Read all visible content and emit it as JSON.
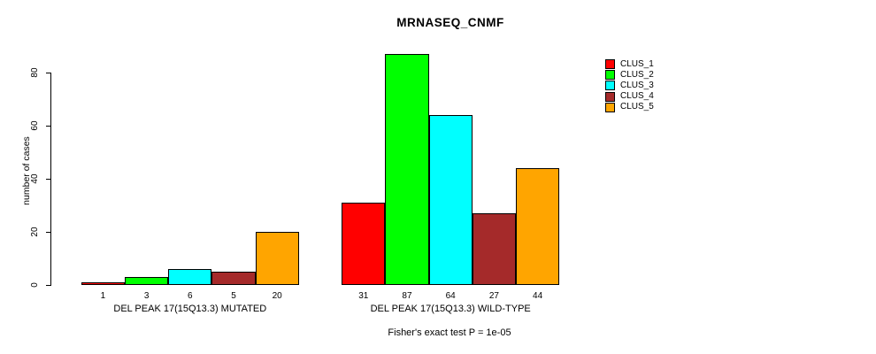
{
  "chart_data": {
    "type": "bar",
    "title": "MRNASEQ_CNMF",
    "ylabel": "number of cases",
    "ylim": [
      0,
      87
    ],
    "yticks": [
      0,
      20,
      40,
      60,
      80
    ],
    "grid": false,
    "legend_position": "right-outside-top",
    "show_bar_value_labels": true,
    "categories": [
      "DEL PEAK 17(15Q13.3) MUTATED",
      "DEL PEAK 17(15Q13.3) WILD-TYPE"
    ],
    "series": [
      {
        "name": "CLUS_1",
        "color": "#FF0000",
        "values": [
          1,
          31
        ]
      },
      {
        "name": "CLUS_2",
        "color": "#00FF00",
        "values": [
          3,
          87
        ]
      },
      {
        "name": "CLUS_3",
        "color": "#00FFFF",
        "values": [
          6,
          64
        ]
      },
      {
        "name": "CLUS_4",
        "color": "#A52A2A",
        "values": [
          5,
          27
        ]
      },
      {
        "name": "CLUS_5",
        "color": "#FFA500",
        "values": [
          20,
          44
        ]
      }
    ],
    "annotation": "Fisher's exact test P = 1e-05"
  }
}
